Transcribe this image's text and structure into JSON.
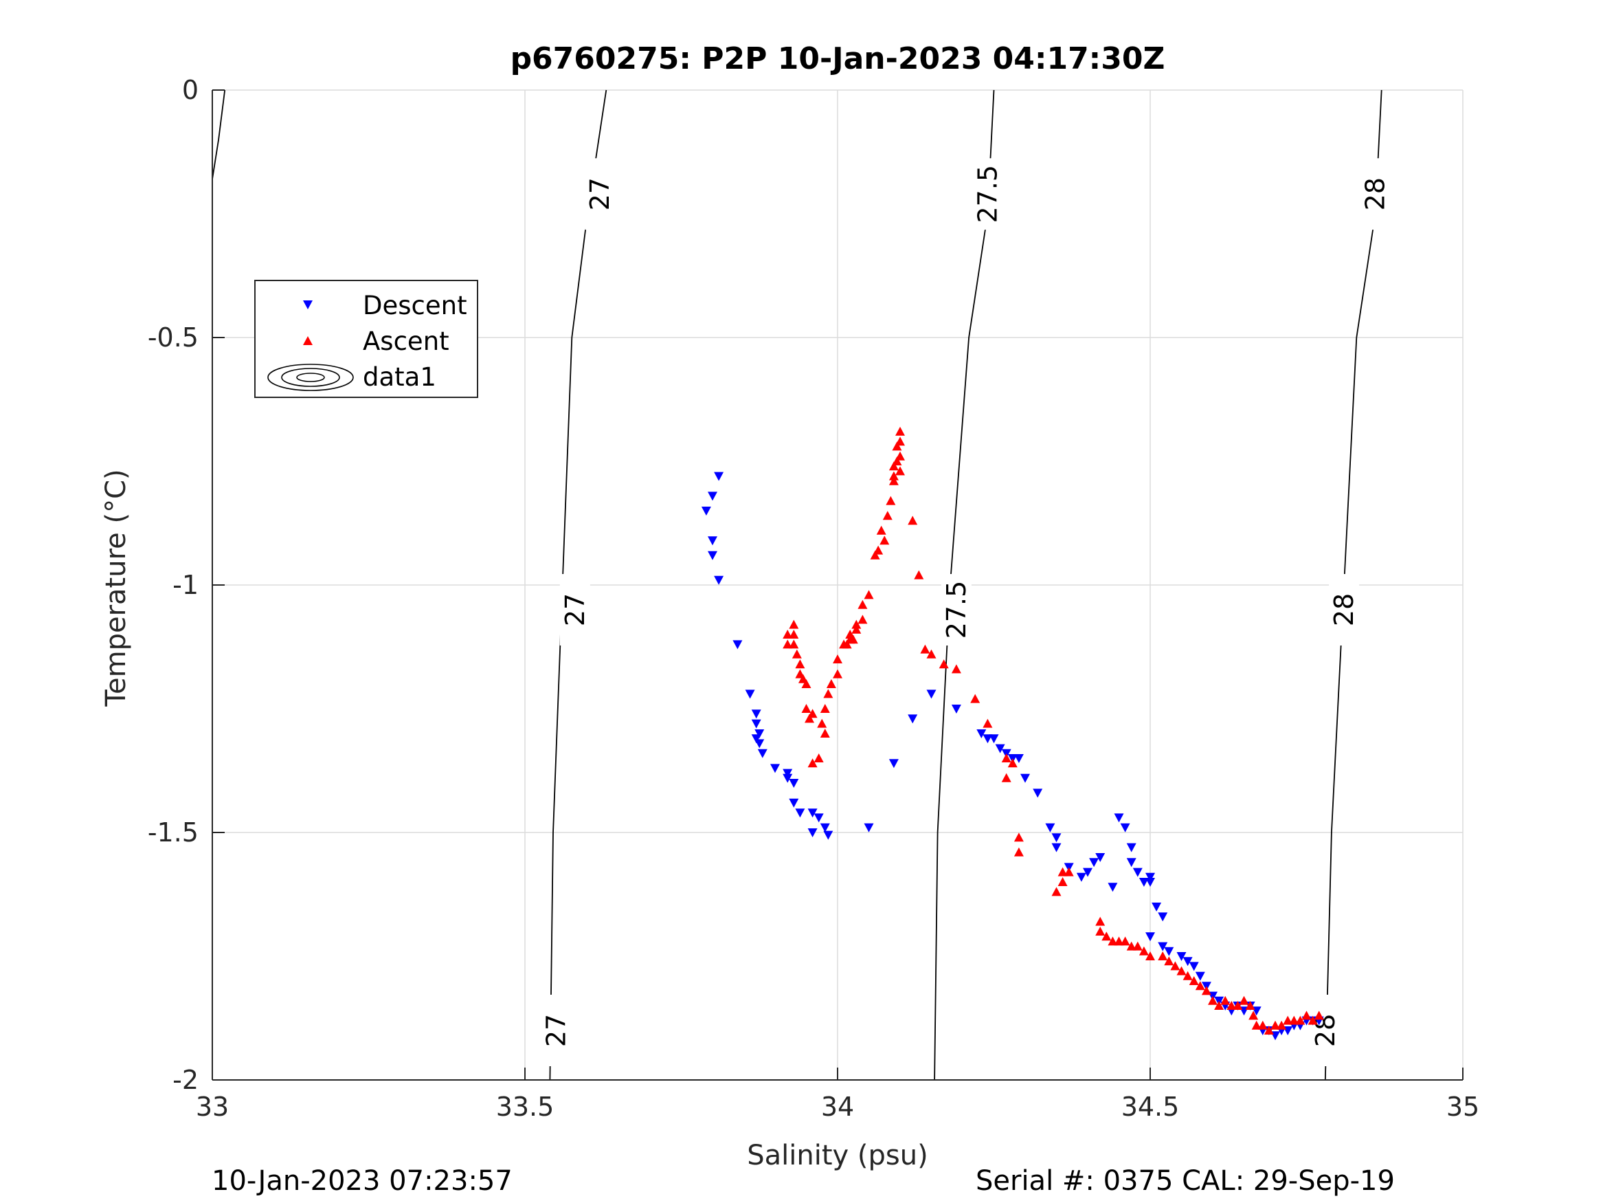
{
  "chart_data": {
    "type": "scatter",
    "title": "p6760275: P2P 10-Jan-2023 04:17:30Z",
    "xlabel": "Salinity (psu)",
    "ylabel": "Temperature (°C)",
    "xlim": [
      33,
      35
    ],
    "ylim": [
      -2,
      0
    ],
    "xticks": [
      33,
      33.5,
      34,
      34.5,
      35
    ],
    "xtick_labels": [
      "33",
      "33.5",
      "34",
      "34.5",
      "35"
    ],
    "yticks": [
      -2,
      -1.5,
      -1,
      -0.5,
      0
    ],
    "ytick_labels": [
      "-2",
      "-1.5",
      "-1",
      "-0.5",
      "0"
    ],
    "grid": true,
    "legend_placement": "upper-left",
    "colors": {
      "descent": "#0000ff",
      "ascent": "#ff0000",
      "contour": "#000000"
    },
    "contours": [
      {
        "label": "27",
        "points": [
          [
            33.63,
            0
          ],
          [
            33.6,
            -0.25
          ],
          [
            33.575,
            -0.5
          ],
          [
            33.56,
            -1
          ],
          [
            33.545,
            -1.5
          ],
          [
            33.54,
            -2
          ]
        ],
        "label_positions": [
          [
            33.62,
            -0.21
          ],
          [
            33.58,
            -1.05
          ],
          [
            33.55,
            -1.9
          ]
        ]
      },
      {
        "label": "27.5",
        "points": [
          [
            34.25,
            0
          ],
          [
            34.24,
            -0.25
          ],
          [
            34.21,
            -0.5
          ],
          [
            34.18,
            -1
          ],
          [
            34.16,
            -1.5
          ],
          [
            34.155,
            -2
          ]
        ],
        "label_positions": [
          [
            34.24,
            -0.21
          ],
          [
            34.19,
            -1.05
          ]
        ]
      },
      {
        "label": "28",
        "points": [
          [
            34.87,
            0
          ],
          [
            34.86,
            -0.25
          ],
          [
            34.83,
            -0.5
          ],
          [
            34.81,
            -1
          ],
          [
            34.79,
            -1.5
          ],
          [
            34.78,
            -2
          ]
        ],
        "label_positions": [
          [
            34.86,
            -0.21
          ],
          [
            34.81,
            -1.05
          ],
          [
            34.78,
            -1.9
          ]
        ]
      },
      {
        "label": "",
        "points": [
          [
            33.02,
            0
          ],
          [
            33.01,
            -0.1
          ],
          [
            33.0,
            -0.18
          ]
        ],
        "label_positions": []
      }
    ],
    "series": [
      {
        "name": "Descent",
        "marker": "triangle-down",
        "points": [
          [
            33.81,
            -0.78
          ],
          [
            33.8,
            -0.82
          ],
          [
            33.79,
            -0.85
          ],
          [
            33.8,
            -0.91
          ],
          [
            33.8,
            -0.94
          ],
          [
            33.81,
            -0.99
          ],
          [
            33.84,
            -1.12
          ],
          [
            33.86,
            -1.22
          ],
          [
            33.87,
            -1.26
          ],
          [
            33.87,
            -1.28
          ],
          [
            33.875,
            -1.3
          ],
          [
            33.87,
            -1.31
          ],
          [
            33.875,
            -1.32
          ],
          [
            33.88,
            -1.34
          ],
          [
            33.9,
            -1.37
          ],
          [
            33.92,
            -1.38
          ],
          [
            33.92,
            -1.39
          ],
          [
            33.93,
            -1.4
          ],
          [
            33.93,
            -1.44
          ],
          [
            33.94,
            -1.46
          ],
          [
            33.96,
            -1.46
          ],
          [
            33.97,
            -1.47
          ],
          [
            33.98,
            -1.49
          ],
          [
            33.96,
            -1.5
          ],
          [
            33.985,
            -1.505
          ],
          [
            34.05,
            -1.49
          ],
          [
            34.09,
            -1.36
          ],
          [
            34.12,
            -1.27
          ],
          [
            34.15,
            -1.22
          ],
          [
            34.19,
            -1.25
          ],
          [
            34.23,
            -1.3
          ],
          [
            34.24,
            -1.31
          ],
          [
            34.25,
            -1.31
          ],
          [
            34.26,
            -1.33
          ],
          [
            34.27,
            -1.34
          ],
          [
            34.28,
            -1.35
          ],
          [
            34.29,
            -1.35
          ],
          [
            34.3,
            -1.39
          ],
          [
            34.32,
            -1.42
          ],
          [
            34.34,
            -1.49
          ],
          [
            34.35,
            -1.51
          ],
          [
            34.35,
            -1.53
          ],
          [
            34.37,
            -1.57
          ],
          [
            34.39,
            -1.59
          ],
          [
            34.4,
            -1.58
          ],
          [
            34.41,
            -1.56
          ],
          [
            34.42,
            -1.55
          ],
          [
            34.44,
            -1.61
          ],
          [
            34.45,
            -1.47
          ],
          [
            34.46,
            -1.49
          ],
          [
            34.47,
            -1.53
          ],
          [
            34.47,
            -1.56
          ],
          [
            34.48,
            -1.58
          ],
          [
            34.49,
            -1.6
          ],
          [
            34.5,
            -1.59
          ],
          [
            34.5,
            -1.6
          ],
          [
            34.51,
            -1.65
          ],
          [
            34.52,
            -1.67
          ],
          [
            34.5,
            -1.71
          ],
          [
            34.52,
            -1.73
          ],
          [
            34.53,
            -1.74
          ],
          [
            34.55,
            -1.75
          ],
          [
            34.56,
            -1.76
          ],
          [
            34.57,
            -1.77
          ],
          [
            34.58,
            -1.79
          ],
          [
            34.59,
            -1.81
          ],
          [
            34.6,
            -1.83
          ],
          [
            34.61,
            -1.84
          ],
          [
            34.62,
            -1.85
          ],
          [
            34.63,
            -1.86
          ],
          [
            34.64,
            -1.85
          ],
          [
            34.65,
            -1.86
          ],
          [
            34.66,
            -1.85
          ],
          [
            34.67,
            -1.86
          ],
          [
            34.68,
            -1.9
          ],
          [
            34.69,
            -1.9
          ],
          [
            34.7,
            -1.91
          ],
          [
            34.71,
            -1.9
          ],
          [
            34.72,
            -1.9
          ],
          [
            34.73,
            -1.89
          ],
          [
            34.74,
            -1.89
          ],
          [
            34.75,
            -1.88
          ],
          [
            34.76,
            -1.88
          ],
          [
            34.77,
            -1.88
          ]
        ]
      },
      {
        "name": "Ascent",
        "marker": "triangle-up",
        "points": [
          [
            34.1,
            -0.69
          ],
          [
            34.1,
            -0.71
          ],
          [
            34.095,
            -0.72
          ],
          [
            34.1,
            -0.74
          ],
          [
            34.095,
            -0.75
          ],
          [
            34.09,
            -0.76
          ],
          [
            34.1,
            -0.77
          ],
          [
            34.09,
            -0.78
          ],
          [
            34.09,
            -0.79
          ],
          [
            34.085,
            -0.83
          ],
          [
            34.08,
            -0.86
          ],
          [
            34.12,
            -0.87
          ],
          [
            34.07,
            -0.89
          ],
          [
            34.075,
            -0.91
          ],
          [
            34.065,
            -0.93
          ],
          [
            34.06,
            -0.94
          ],
          [
            34.13,
            -0.98
          ],
          [
            34.05,
            -1.02
          ],
          [
            34.04,
            -1.04
          ],
          [
            34.04,
            -1.07
          ],
          [
            34.03,
            -1.08
          ],
          [
            34.02,
            -1.1
          ],
          [
            34.02,
            -1.11
          ],
          [
            34.015,
            -1.12
          ],
          [
            34.01,
            -1.12
          ],
          [
            34.03,
            -1.09
          ],
          [
            34.025,
            -1.11
          ],
          [
            34.0,
            -1.15
          ],
          [
            34.0,
            -1.18
          ],
          [
            33.99,
            -1.2
          ],
          [
            33.985,
            -1.22
          ],
          [
            33.98,
            -1.25
          ],
          [
            33.975,
            -1.28
          ],
          [
            33.98,
            -1.3
          ],
          [
            33.96,
            -1.26
          ],
          [
            33.95,
            -1.25
          ],
          [
            33.955,
            -1.27
          ],
          [
            33.96,
            -1.36
          ],
          [
            33.97,
            -1.35
          ],
          [
            33.93,
            -1.08
          ],
          [
            33.92,
            -1.1
          ],
          [
            33.93,
            -1.12
          ],
          [
            33.935,
            -1.14
          ],
          [
            33.94,
            -1.16
          ],
          [
            33.94,
            -1.18
          ],
          [
            33.945,
            -1.19
          ],
          [
            33.95,
            -1.2
          ],
          [
            33.92,
            -1.12
          ],
          [
            33.93,
            -1.1
          ],
          [
            34.14,
            -1.13
          ],
          [
            34.15,
            -1.14
          ],
          [
            34.17,
            -1.16
          ],
          [
            34.19,
            -1.17
          ],
          [
            34.22,
            -1.23
          ],
          [
            34.24,
            -1.28
          ],
          [
            34.27,
            -1.35
          ],
          [
            34.28,
            -1.36
          ],
          [
            34.27,
            -1.39
          ],
          [
            34.29,
            -1.51
          ],
          [
            34.29,
            -1.54
          ],
          [
            34.36,
            -1.58
          ],
          [
            34.36,
            -1.6
          ],
          [
            34.37,
            -1.58
          ],
          [
            34.35,
            -1.62
          ],
          [
            34.42,
            -1.68
          ],
          [
            34.42,
            -1.7
          ],
          [
            34.43,
            -1.71
          ],
          [
            34.44,
            -1.72
          ],
          [
            34.45,
            -1.72
          ],
          [
            34.46,
            -1.72
          ],
          [
            34.47,
            -1.73
          ],
          [
            34.48,
            -1.73
          ],
          [
            34.49,
            -1.74
          ],
          [
            34.5,
            -1.75
          ],
          [
            34.52,
            -1.75
          ],
          [
            34.53,
            -1.76
          ],
          [
            34.54,
            -1.77
          ],
          [
            34.55,
            -1.78
          ],
          [
            34.56,
            -1.79
          ],
          [
            34.57,
            -1.8
          ],
          [
            34.58,
            -1.81
          ],
          [
            34.59,
            -1.82
          ],
          [
            34.6,
            -1.84
          ],
          [
            34.61,
            -1.85
          ],
          [
            34.62,
            -1.84
          ],
          [
            34.63,
            -1.85
          ],
          [
            34.64,
            -1.85
          ],
          [
            34.65,
            -1.84
          ],
          [
            34.66,
            -1.85
          ],
          [
            34.665,
            -1.87
          ],
          [
            34.67,
            -1.89
          ],
          [
            34.68,
            -1.89
          ],
          [
            34.69,
            -1.9
          ],
          [
            34.7,
            -1.89
          ],
          [
            34.71,
            -1.89
          ],
          [
            34.72,
            -1.88
          ],
          [
            34.73,
            -1.88
          ],
          [
            34.74,
            -1.88
          ],
          [
            34.75,
            -1.87
          ],
          [
            34.76,
            -1.88
          ],
          [
            34.77,
            -1.87
          ]
        ]
      }
    ],
    "legend": [
      {
        "label": "Descent",
        "symbol": "triangle-down",
        "color": "#0000ff"
      },
      {
        "label": "Ascent",
        "symbol": "triangle-up",
        "color": "#ff0000"
      },
      {
        "label": "data1",
        "symbol": "contour-ellipses",
        "color": "#000000"
      }
    ]
  },
  "footer": {
    "left": "10-Jan-2023 07:23:57",
    "right": "Serial #: 0375  CAL: 29-Sep-19"
  }
}
